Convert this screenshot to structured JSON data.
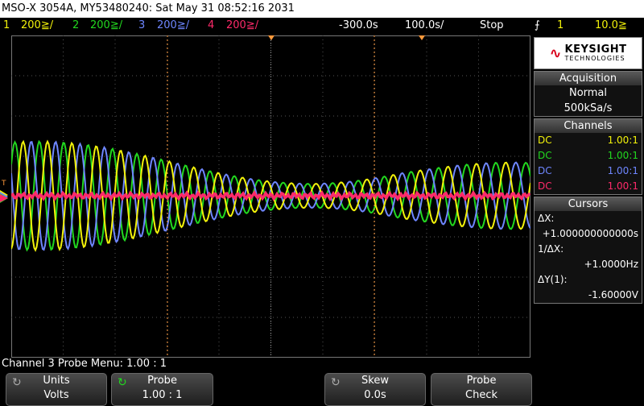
{
  "title_bar": "MSO-X 3054A, MY53480240: Sat May 31 08:52:16 2031",
  "status": {
    "ch1_num": "1",
    "ch1_scale": "200≧/",
    "ch2_num": "2",
    "ch2_scale": "200≧/",
    "ch3_num": "3",
    "ch3_scale": "200≧/",
    "ch4_num": "4",
    "ch4_scale": "200≧/",
    "delay": "-300.0s",
    "timebase": "100.0s/",
    "run_state": "Stop",
    "trig_icon": "trigger-edge-rising",
    "trig_source": "1",
    "trig_level": "10.0≧"
  },
  "colors": {
    "ch1": "#f2f20a",
    "ch2": "#22d81f",
    "ch3": "#6e86ff",
    "ch4": "#ff2a6a",
    "cursor": "#ff9a3c"
  },
  "panel": {
    "brand_line1": "KEYSIGHT",
    "brand_line2": "TECHNOLOGIES",
    "acq_title": "Acquisition",
    "acq_mode": "Normal",
    "acq_rate": "500kSa/s",
    "ch_title": "Channels",
    "channels": [
      {
        "coupling": "DC",
        "ratio": "1.00:1"
      },
      {
        "coupling": "DC",
        "ratio": "1.00:1"
      },
      {
        "coupling": "DC",
        "ratio": "1.00:1"
      },
      {
        "coupling": "DC",
        "ratio": "1.00:1"
      }
    ],
    "cur_title": "Cursors",
    "dx_label": "ΔX:",
    "dx_value": "+1.000000000000s",
    "inv_label": "1/ΔX:",
    "inv_value": "+1.0000Hz",
    "dy_label": "ΔY(1):",
    "dy_value": "-1.60000V"
  },
  "menu_title": "Channel 3 Probe Menu: 1.00 : 1",
  "softkeys": [
    {
      "top": "Units",
      "bottom": "Volts"
    },
    {
      "top": "Probe",
      "bottom": "1.00 : 1"
    },
    {
      "top": "Skew",
      "bottom": "0.0s"
    },
    {
      "top": "Probe",
      "bottom": "Check"
    }
  ],
  "markers": {
    "trig": "T",
    "ch_markers": "3 1 4 2"
  }
}
